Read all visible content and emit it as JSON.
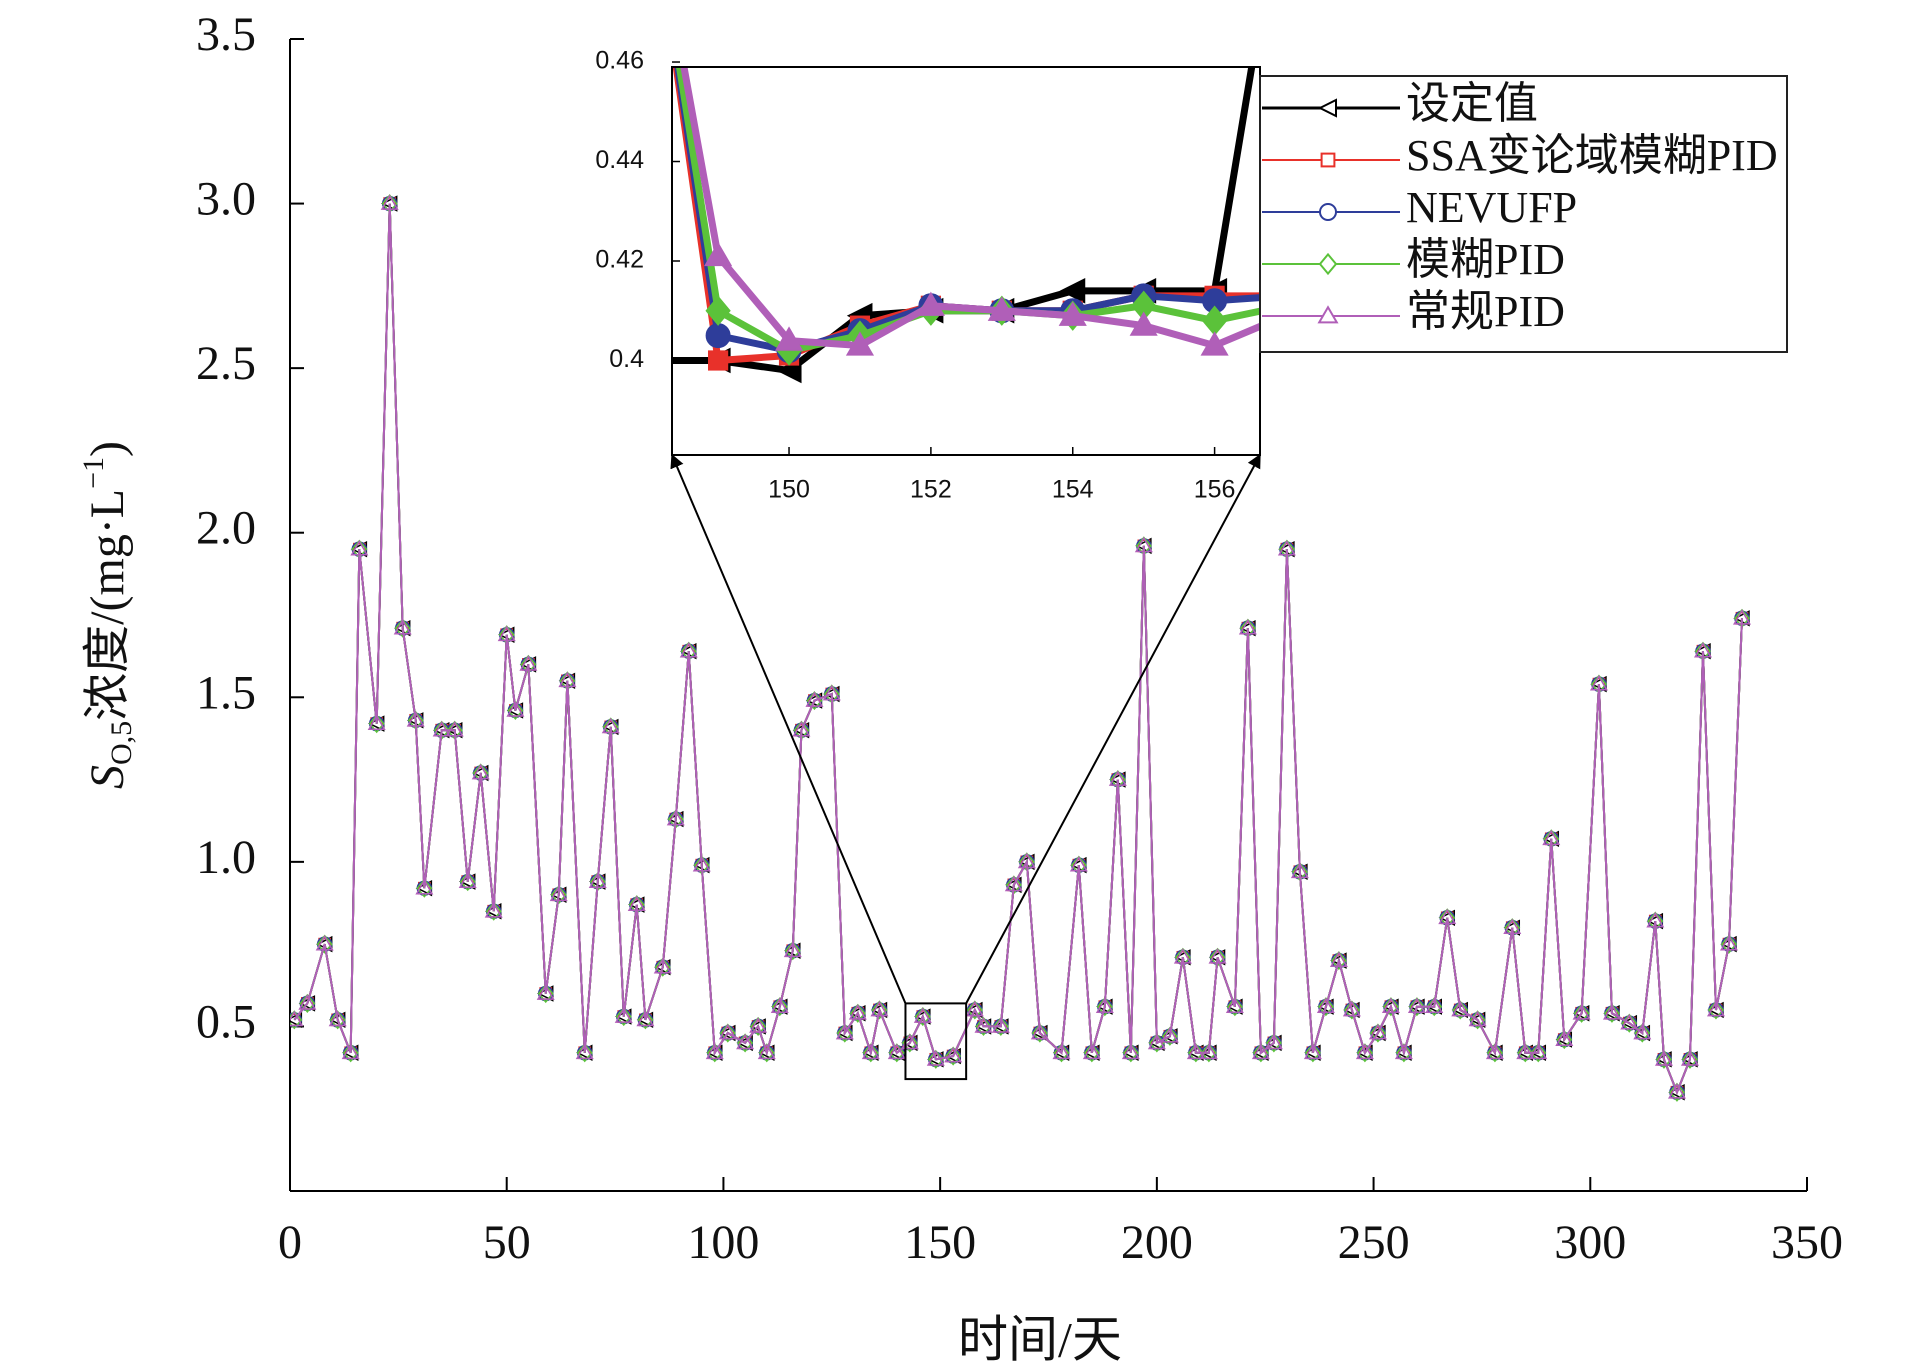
{
  "chart_data": {
    "type": "line",
    "xlabel": "时间/天",
    "ylabel": [
      "S",
      "O,5",
      "浓度/(mg·L",
      "−1",
      ")"
    ],
    "xlim": [
      0,
      350
    ],
    "ylim": [
      0,
      3.5
    ],
    "xticks": [
      0,
      50,
      100,
      150,
      200,
      250,
      300,
      350
    ],
    "yticks": [
      0.5,
      {
        "value": 1,
        "label": "1.0"
      },
      1.5,
      {
        "value": 2,
        "label": "2.0"
      },
      2.5,
      {
        "value": 3,
        "label": "3.0"
      },
      3.5
    ],
    "legend": "upper right",
    "x": [
      1,
      4,
      8,
      11,
      14,
      16,
      20,
      23,
      26,
      29,
      31,
      35,
      38,
      41,
      44,
      47,
      50,
      52,
      55,
      59,
      62,
      64,
      68,
      71,
      74,
      77,
      80,
      82,
      86,
      89,
      92,
      95,
      98,
      101,
      105,
      108,
      110,
      113,
      116,
      118,
      121,
      125,
      128,
      131,
      134,
      136,
      140,
      143,
      146,
      149,
      153,
      158,
      160,
      164,
      167,
      170,
      173,
      178,
      182,
      185,
      188,
      191,
      194,
      197,
      200,
      203,
      206,
      209,
      212,
      214,
      218,
      221,
      224,
      227,
      230,
      233,
      236,
      239,
      242,
      245,
      248,
      251,
      254,
      257,
      260,
      264,
      267,
      270,
      274,
      278,
      282,
      285,
      288,
      291,
      294,
      298,
      302,
      305,
      309,
      312,
      315,
      317,
      320,
      323,
      326,
      329,
      332,
      335
    ],
    "series": [
      {
        "name": "设定值",
        "color": "#000000",
        "marker": "triangle-left",
        "values": [
          0.52,
          0.57,
          0.75,
          0.52,
          0.42,
          1.95,
          1.42,
          3.0,
          1.71,
          1.43,
          0.92,
          1.4,
          1.4,
          0.94,
          1.27,
          0.85,
          1.69,
          1.46,
          1.6,
          0.6,
          0.9,
          1.55,
          0.42,
          0.94,
          1.41,
          0.53,
          0.87,
          0.52,
          0.68,
          1.13,
          1.64,
          0.99,
          0.42,
          0.48,
          0.45,
          0.5,
          0.42,
          0.56,
          0.73,
          1.4,
          1.49,
          1.51,
          0.48,
          0.54,
          0.42,
          0.55,
          0.42,
          0.45,
          0.53,
          0.4,
          0.41,
          0.55,
          0.5,
          0.5,
          0.93,
          1.0,
          0.48,
          0.42,
          0.99,
          0.42,
          0.56,
          1.25,
          0.42,
          1.96,
          0.45,
          0.47,
          0.71,
          0.42,
          0.42,
          0.71,
          0.56,
          1.71,
          0.42,
          0.45,
          1.95,
          0.97,
          0.42,
          0.56,
          0.7,
          0.55,
          0.42,
          0.48,
          0.56,
          0.42,
          0.56,
          0.56,
          0.83,
          0.55,
          0.52,
          0.42,
          0.8,
          0.42,
          0.42,
          1.07,
          0.46,
          0.54,
          1.54,
          0.54,
          0.51,
          0.48,
          0.82,
          0.4,
          0.3,
          0.4,
          1.64,
          0.55,
          0.75,
          1.74
        ]
      },
      {
        "name": "SSA变论域模糊PID",
        "color": "#e8312a",
        "marker": "square",
        "values": [
          0.52,
          0.57,
          0.75,
          0.52,
          0.42,
          1.95,
          1.42,
          3.0,
          1.71,
          1.43,
          0.92,
          1.4,
          1.4,
          0.94,
          1.27,
          0.85,
          1.69,
          1.46,
          1.6,
          0.6,
          0.9,
          1.55,
          0.42,
          0.94,
          1.41,
          0.53,
          0.87,
          0.52,
          0.68,
          1.13,
          1.64,
          0.99,
          0.42,
          0.48,
          0.45,
          0.5,
          0.42,
          0.56,
          0.73,
          1.4,
          1.49,
          1.51,
          0.48,
          0.54,
          0.42,
          0.55,
          0.42,
          0.45,
          0.53,
          0.4,
          0.41,
          0.55,
          0.5,
          0.5,
          0.93,
          1.0,
          0.48,
          0.42,
          0.99,
          0.42,
          0.56,
          1.25,
          0.42,
          1.96,
          0.45,
          0.47,
          0.71,
          0.42,
          0.42,
          0.71,
          0.56,
          1.71,
          0.42,
          0.45,
          1.95,
          0.97,
          0.42,
          0.56,
          0.7,
          0.55,
          0.42,
          0.48,
          0.56,
          0.42,
          0.56,
          0.56,
          0.83,
          0.55,
          0.52,
          0.42,
          0.8,
          0.42,
          0.42,
          1.07,
          0.46,
          0.54,
          1.54,
          0.54,
          0.51,
          0.48,
          0.82,
          0.4,
          0.3,
          0.4,
          1.64,
          0.55,
          0.75,
          1.74
        ]
      },
      {
        "name": "NEVUFP",
        "color": "#2e3d9a",
        "marker": "circle",
        "values": [
          0.52,
          0.57,
          0.75,
          0.52,
          0.42,
          1.95,
          1.42,
          3.0,
          1.71,
          1.43,
          0.92,
          1.4,
          1.4,
          0.94,
          1.27,
          0.85,
          1.69,
          1.46,
          1.6,
          0.6,
          0.9,
          1.55,
          0.42,
          0.94,
          1.41,
          0.53,
          0.87,
          0.52,
          0.68,
          1.13,
          1.64,
          0.99,
          0.42,
          0.48,
          0.45,
          0.5,
          0.42,
          0.56,
          0.73,
          1.4,
          1.49,
          1.51,
          0.48,
          0.54,
          0.42,
          0.55,
          0.42,
          0.45,
          0.53,
          0.4,
          0.41,
          0.55,
          0.5,
          0.5,
          0.93,
          1.0,
          0.48,
          0.42,
          0.99,
          0.42,
          0.56,
          1.25,
          0.42,
          1.96,
          0.45,
          0.47,
          0.71,
          0.42,
          0.42,
          0.71,
          0.56,
          1.71,
          0.42,
          0.45,
          1.95,
          0.97,
          0.42,
          0.56,
          0.7,
          0.55,
          0.42,
          0.48,
          0.56,
          0.42,
          0.56,
          0.56,
          0.83,
          0.55,
          0.52,
          0.42,
          0.8,
          0.42,
          0.42,
          1.07,
          0.46,
          0.54,
          1.54,
          0.54,
          0.51,
          0.48,
          0.82,
          0.4,
          0.3,
          0.4,
          1.64,
          0.55,
          0.75,
          1.74
        ]
      },
      {
        "name": "模糊PID",
        "color": "#5bc23a",
        "marker": "diamond",
        "values": [
          0.52,
          0.57,
          0.75,
          0.52,
          0.42,
          1.95,
          1.42,
          3.0,
          1.71,
          1.43,
          0.92,
          1.4,
          1.4,
          0.94,
          1.27,
          0.85,
          1.69,
          1.46,
          1.6,
          0.6,
          0.9,
          1.55,
          0.42,
          0.94,
          1.41,
          0.53,
          0.87,
          0.52,
          0.68,
          1.13,
          1.64,
          0.99,
          0.42,
          0.48,
          0.45,
          0.5,
          0.42,
          0.56,
          0.73,
          1.4,
          1.49,
          1.51,
          0.48,
          0.54,
          0.42,
          0.55,
          0.42,
          0.45,
          0.53,
          0.4,
          0.41,
          0.55,
          0.5,
          0.5,
          0.93,
          1.0,
          0.48,
          0.42,
          0.99,
          0.42,
          0.56,
          1.25,
          0.42,
          1.96,
          0.45,
          0.47,
          0.71,
          0.42,
          0.42,
          0.71,
          0.56,
          1.71,
          0.42,
          0.45,
          1.95,
          0.97,
          0.42,
          0.56,
          0.7,
          0.55,
          0.42,
          0.48,
          0.56,
          0.42,
          0.56,
          0.56,
          0.83,
          0.55,
          0.52,
          0.42,
          0.8,
          0.42,
          0.42,
          1.07,
          0.46,
          0.54,
          1.54,
          0.54,
          0.51,
          0.48,
          0.82,
          0.4,
          0.3,
          0.4,
          1.64,
          0.55,
          0.75,
          1.74
        ]
      },
      {
        "name": "常规PID",
        "color": "#b05fb8",
        "marker": "triangle-up",
        "values": [
          0.52,
          0.57,
          0.75,
          0.52,
          0.42,
          1.95,
          1.42,
          3.0,
          1.71,
          1.43,
          0.92,
          1.4,
          1.4,
          0.94,
          1.27,
          0.85,
          1.69,
          1.46,
          1.6,
          0.6,
          0.9,
          1.55,
          0.42,
          0.94,
          1.41,
          0.53,
          0.87,
          0.52,
          0.68,
          1.13,
          1.64,
          0.99,
          0.42,
          0.48,
          0.45,
          0.5,
          0.42,
          0.56,
          0.73,
          1.4,
          1.49,
          1.51,
          0.48,
          0.54,
          0.42,
          0.55,
          0.42,
          0.45,
          0.53,
          0.4,
          0.41,
          0.55,
          0.5,
          0.5,
          0.93,
          1.0,
          0.48,
          0.42,
          0.99,
          0.42,
          0.56,
          1.25,
          0.42,
          1.96,
          0.45,
          0.47,
          0.71,
          0.42,
          0.42,
          0.71,
          0.56,
          1.71,
          0.42,
          0.45,
          1.95,
          0.97,
          0.42,
          0.56,
          0.7,
          0.55,
          0.42,
          0.48,
          0.56,
          0.42,
          0.56,
          0.56,
          0.83,
          0.55,
          0.52,
          0.42,
          0.8,
          0.42,
          0.42,
          1.07,
          0.46,
          0.54,
          1.54,
          0.54,
          0.51,
          0.48,
          0.82,
          0.4,
          0.3,
          0.4,
          1.64,
          0.55,
          0.75,
          1.74
        ]
      }
    ],
    "zoom_region": {
      "x": [
        142,
        156
      ],
      "y": [
        0.34,
        0.57
      ]
    },
    "inset": {
      "xlim": [
        148.35,
        156.64
      ],
      "ylim": [
        0.381,
        0.459
      ],
      "xticks": [
        150,
        152,
        154,
        156
      ],
      "yticks": [
        0.4,
        0.42,
        0.44,
        0.46
      ],
      "x": [
        148,
        149,
        150,
        151,
        152,
        153,
        154,
        155,
        156,
        157
      ],
      "series": [
        {
          "values": [
            0.4,
            0.4,
            0.398,
            0.409,
            0.41,
            0.41,
            0.414,
            0.414,
            0.414,
            0.5
          ]
        },
        {
          "values": [
            0.5,
            0.4,
            0.401,
            0.407,
            0.411,
            0.41,
            0.41,
            0.413,
            0.413,
            0.413
          ]
        },
        {
          "values": [
            0.5,
            0.405,
            0.402,
            0.406,
            0.411,
            0.41,
            0.41,
            0.413,
            0.412,
            0.413
          ]
        },
        {
          "values": [
            0.5,
            0.41,
            0.402,
            0.405,
            0.41,
            0.41,
            0.409,
            0.411,
            0.408,
            0.411
          ]
        },
        {
          "values": [
            0.5,
            0.421,
            0.404,
            0.403,
            0.411,
            0.41,
            0.409,
            0.407,
            0.403,
            0.409
          ]
        }
      ]
    }
  }
}
